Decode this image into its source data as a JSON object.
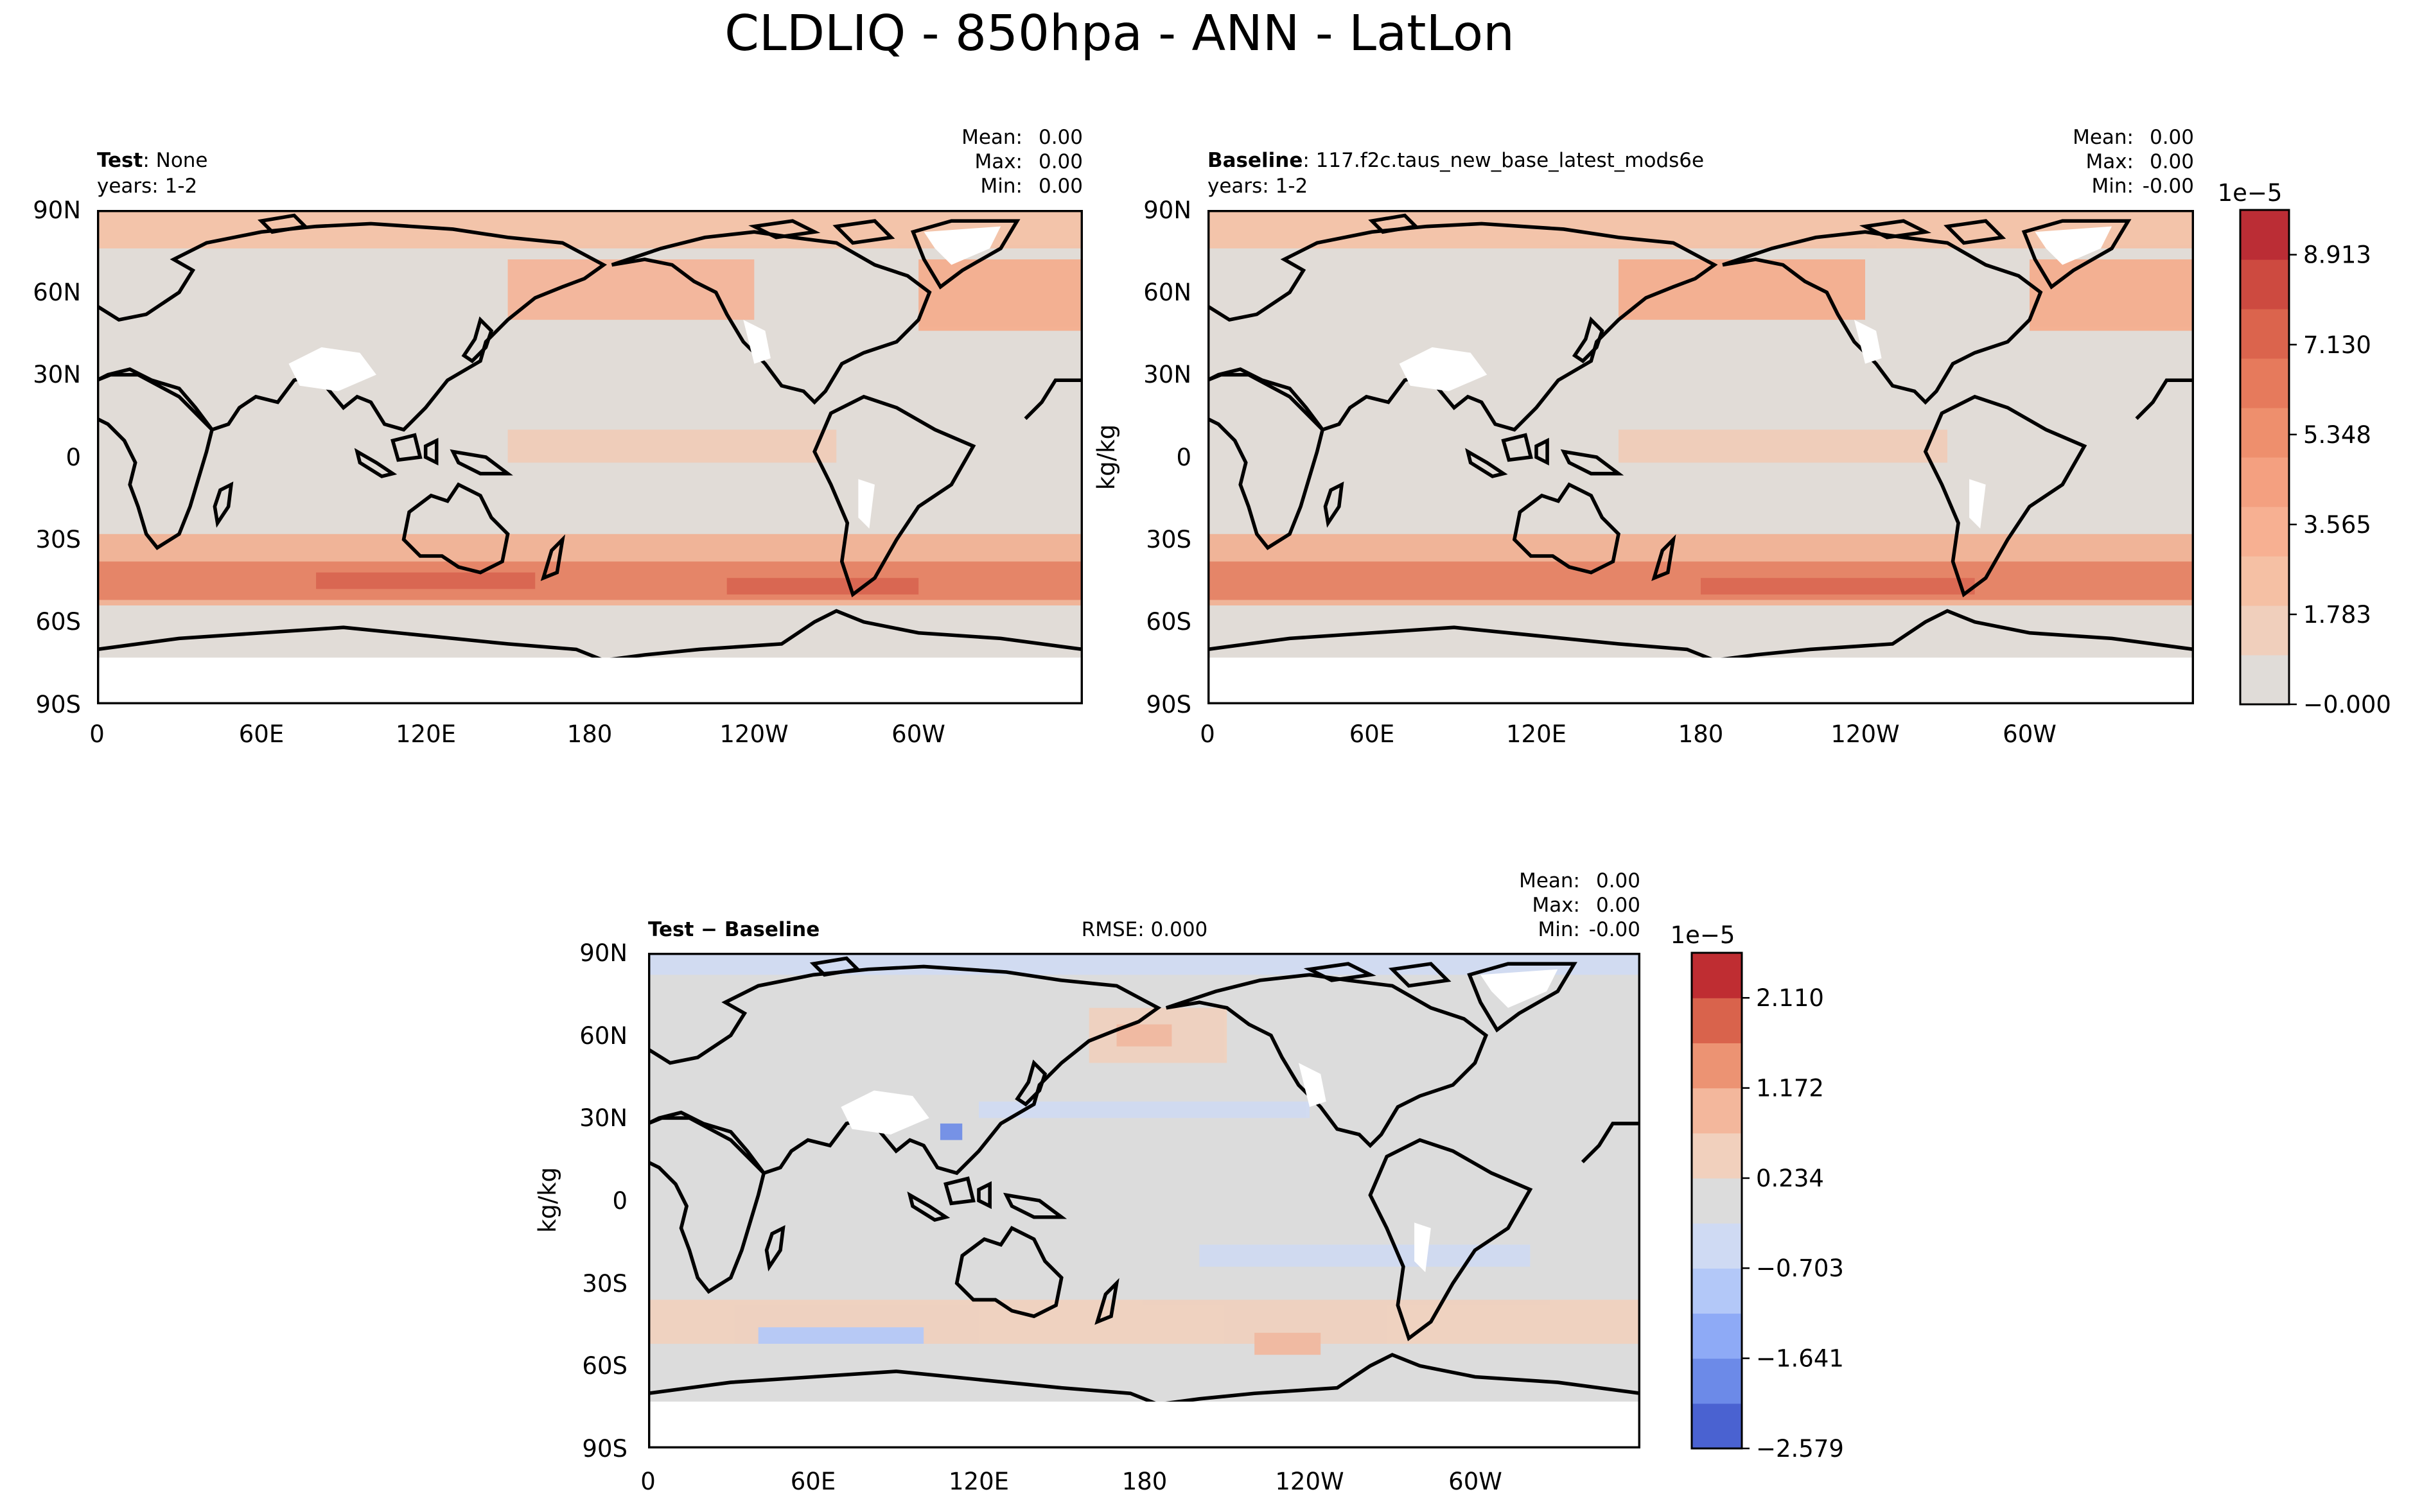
{
  "figure_title": "CLDLIQ - 850hpa - ANN - LatLon",
  "colors": {
    "land": "#000000",
    "background": "#ffffff",
    "seq_cmap": [
      "#e0dcd8",
      "#f0cfbc",
      "#f5c0a4",
      "#f7b092",
      "#f4a080",
      "#ee8f6d",
      "#e67a5c",
      "#db644d",
      "#cd4a40",
      "#bb2d35"
    ],
    "div_cmap": [
      "#4a62d1",
      "#6c8ae8",
      "#8eaaf6",
      "#b3c8f8",
      "#cfdaf3",
      "#dcdcdc",
      "#f1d0bd",
      "#f3b79c",
      "#ec9373",
      "#d9634c",
      "#bf2d32"
    ]
  },
  "chart_data": [
    {
      "type": "heatmap",
      "panel": "test",
      "title_bold": "Test",
      "title_rest": ": None",
      "subtitle": "years: 1-2",
      "stats": {
        "mean_label": "Mean:",
        "mean": "0.00",
        "max_label": "Max:",
        "max": "0.00",
        "min_label": "Min:",
        "min": "0.00"
      },
      "ylabel": "",
      "x_ticks": [
        "0",
        "60E",
        "120E",
        "180",
        "120W",
        "60W"
      ],
      "y_ticks": [
        "90N",
        "60N",
        "30N",
        "0",
        "30S",
        "60S",
        "90S"
      ],
      "xlim": [
        0,
        360
      ],
      "ylim": [
        -90,
        90
      ]
    },
    {
      "type": "heatmap",
      "panel": "baseline",
      "title_bold": "Baseline",
      "title_rest": ": 117.f2c.taus_new_base_latest_mods6e",
      "subtitle": "years: 1-2",
      "stats": {
        "mean_label": "Mean:",
        "mean": "0.00",
        "max_label": "Max:",
        "max": "0.00",
        "min_label": "Min:",
        "min": "-0.00"
      },
      "ylabel": "kg/kg",
      "x_ticks": [
        "0",
        "60E",
        "120E",
        "180",
        "120W",
        "60W"
      ],
      "y_ticks": [
        "90N",
        "60N",
        "30N",
        "0",
        "30S",
        "60S",
        "90S"
      ],
      "xlim": [
        0,
        360
      ],
      "ylim": [
        -90,
        90
      ],
      "colorbar": {
        "exponent": "1e−5",
        "ticks": [
          "8.913",
          "7.130",
          "5.348",
          "3.565",
          "1.783",
          "−0.000"
        ],
        "tick_values": [
          8.913,
          7.13,
          5.348,
          3.565,
          1.783,
          0
        ],
        "range": [
          0,
          9.8
        ]
      }
    },
    {
      "type": "heatmap",
      "panel": "difference",
      "title_bold": "Test − Baseline",
      "rmse": "RMSE: 0.000",
      "stats": {
        "mean_label": "Mean:",
        "mean": "0.00",
        "max_label": "Max:",
        "max": "0.00",
        "min_label": "Min:",
        "min": "-0.00"
      },
      "ylabel": "kg/kg",
      "x_ticks": [
        "0",
        "60E",
        "120E",
        "180",
        "120W",
        "60W"
      ],
      "y_ticks": [
        "90N",
        "60N",
        "30N",
        "0",
        "30S",
        "60S",
        "90S"
      ],
      "xlim": [
        0,
        360
      ],
      "ylim": [
        -90,
        90
      ],
      "colorbar": {
        "exponent": "1e−5",
        "ticks": [
          "2.110",
          "1.172",
          "0.234",
          "−0.703",
          "−1.641",
          "−2.579"
        ],
        "tick_values": [
          2.11,
          1.172,
          0.234,
          -0.703,
          -1.641,
          -2.579
        ],
        "range": [
          -2.579,
          2.579
        ]
      }
    }
  ]
}
